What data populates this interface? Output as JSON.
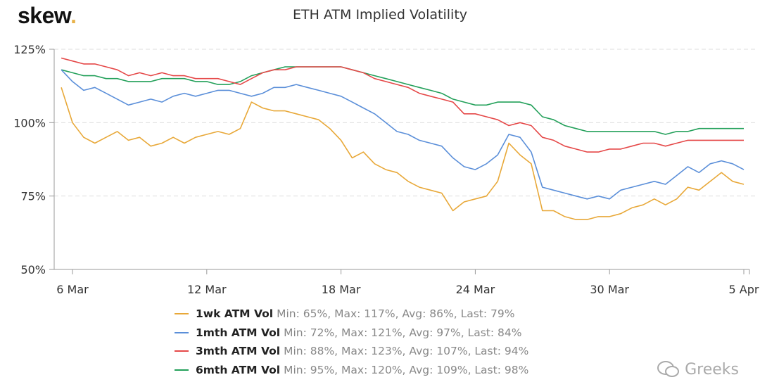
{
  "logo": {
    "text": "skew",
    "dot": "."
  },
  "watermark": "Greeks",
  "chart_data": {
    "type": "line",
    "title": "ETH ATM Implied Volatility",
    "xlabel": "",
    "ylabel": "",
    "ylim": [
      50,
      125
    ],
    "yticks": [
      "50%",
      "75%",
      "100%",
      "125%"
    ],
    "ytick_values": [
      50,
      75,
      100,
      125
    ],
    "xticks": [
      "6 Mar",
      "12 Mar",
      "18 Mar",
      "24 Mar",
      "30 Mar",
      "5 Apr"
    ],
    "xtick_values": [
      "03-06T00",
      "03-12T00",
      "03-18T00",
      "03-24T00",
      "03-30T00",
      "04-05T00"
    ],
    "grid": "horizontal dashed",
    "legend": "bottom",
    "x": [
      "03-05T12",
      "03-06T00",
      "03-06T12",
      "03-07T00",
      "03-07T12",
      "03-08T00",
      "03-08T12",
      "03-09T00",
      "03-09T12",
      "03-10T00",
      "03-10T12",
      "03-11T00",
      "03-11T12",
      "03-12T00",
      "03-12T12",
      "03-13T00",
      "03-13T12",
      "03-14T00",
      "03-14T12",
      "03-15T00",
      "03-15T12",
      "03-16T00",
      "03-16T12",
      "03-17T00",
      "03-17T12",
      "03-18T00",
      "03-18T12",
      "03-19T00",
      "03-19T12",
      "03-20T00",
      "03-20T12",
      "03-21T00",
      "03-21T12",
      "03-22T00",
      "03-22T12",
      "03-23T00",
      "03-23T12",
      "03-24T00",
      "03-24T12",
      "03-25T00",
      "03-25T12",
      "03-26T00",
      "03-26T12",
      "03-27T00",
      "03-27T12",
      "03-28T00",
      "03-28T12",
      "03-29T00",
      "03-29T12",
      "03-30T00",
      "03-30T12",
      "03-31T00",
      "03-31T12",
      "04-01T00",
      "04-01T12",
      "04-02T00",
      "04-02T12",
      "04-03T00",
      "04-03T12",
      "04-04T00",
      "04-04T12",
      "04-05T00"
    ],
    "series": [
      {
        "name": "1wk ATM Vol",
        "color": "#e8a838",
        "stats": "Min: 65%, Max: 117%, Avg: 86%, Last: 79%",
        "values": [
          112,
          100,
          95,
          93,
          95,
          97,
          94,
          95,
          92,
          93,
          95,
          93,
          95,
          96,
          97,
          96,
          98,
          107,
          105,
          104,
          104,
          103,
          102,
          101,
          98,
          94,
          88,
          90,
          86,
          84,
          83,
          80,
          78,
          77,
          76,
          70,
          73,
          74,
          75,
          80,
          93,
          89,
          86,
          70,
          70,
          68,
          67,
          67,
          68,
          68,
          69,
          71,
          72,
          74,
          72,
          74,
          78,
          77,
          80,
          83,
          80,
          79
        ]
      },
      {
        "name": "1mth ATM Vol",
        "color": "#5b8fd9",
        "stats": "Min: 72%, Max: 121%, Avg: 97%, Last: 84%",
        "values": [
          118,
          114,
          111,
          112,
          110,
          108,
          106,
          107,
          108,
          107,
          109,
          110,
          109,
          110,
          111,
          111,
          110,
          109,
          110,
          112,
          112,
          113,
          112,
          111,
          110,
          109,
          107,
          105,
          103,
          100,
          97,
          96,
          94,
          93,
          92,
          88,
          85,
          84,
          86,
          89,
          96,
          95,
          90,
          78,
          77,
          76,
          75,
          74,
          75,
          74,
          77,
          78,
          79,
          80,
          79,
          82,
          85,
          83,
          86,
          87,
          86,
          84
        ]
      },
      {
        "name": "3mth ATM Vol",
        "color": "#e54848",
        "stats": "Min: 88%, Max: 123%, Avg: 107%, Last: 94%",
        "values": [
          122,
          121,
          120,
          120,
          119,
          118,
          116,
          117,
          116,
          117,
          116,
          116,
          115,
          115,
          115,
          114,
          113,
          115,
          117,
          118,
          118,
          119,
          119,
          119,
          119,
          119,
          118,
          117,
          115,
          114,
          113,
          112,
          110,
          109,
          108,
          107,
          103,
          103,
          102,
          101,
          99,
          100,
          99,
          95,
          94,
          92,
          91,
          90,
          90,
          91,
          91,
          92,
          93,
          93,
          92,
          93,
          94,
          94,
          94,
          94,
          94,
          94
        ]
      },
      {
        "name": "6mth ATM Vol",
        "color": "#23a05a",
        "stats": "Min: 95%, Max: 120%, Avg: 109%, Last: 98%",
        "values": [
          118,
          117,
          116,
          116,
          115,
          115,
          114,
          114,
          114,
          115,
          115,
          115,
          114,
          114,
          113,
          113,
          114,
          116,
          117,
          118,
          119,
          119,
          119,
          119,
          119,
          119,
          118,
          117,
          116,
          115,
          114,
          113,
          112,
          111,
          110,
          108,
          107,
          106,
          106,
          107,
          107,
          107,
          106,
          102,
          101,
          99,
          98,
          97,
          97,
          97,
          97,
          97,
          97,
          97,
          96,
          97,
          97,
          98,
          98,
          98,
          98,
          98
        ]
      }
    ]
  }
}
